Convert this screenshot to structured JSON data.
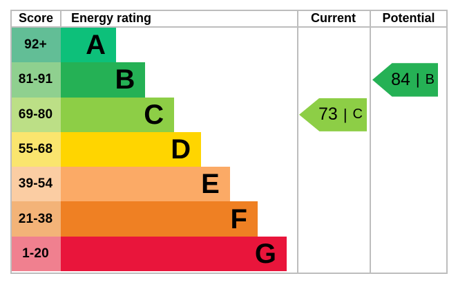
{
  "header": {
    "score": "Score",
    "energy_rating": "Energy rating",
    "current": "Current",
    "potential": "Potential"
  },
  "ui": {
    "separator": "|",
    "grid_line_color": "#bdbdbd",
    "text_color": "#000000"
  },
  "chart_data": {
    "type": "bar",
    "orientation": "horizontal",
    "title": "Energy rating",
    "xlabel": "Score",
    "xlim": [
      1,
      100
    ],
    "legend": false,
    "bands": [
      {
        "letter": "A",
        "score_range": "92+",
        "color": "#0dc07a",
        "score_bg": "#62be96",
        "width_pct": 23.4
      },
      {
        "letter": "B",
        "score_range": "81-91",
        "color": "#25b155",
        "score_bg": "#8fd08f",
        "width_pct": 35.8
      },
      {
        "letter": "C",
        "score_range": "69-80",
        "color": "#8dce46",
        "score_bg": "#bcdf86",
        "width_pct": 48.0
      },
      {
        "letter": "D",
        "score_range": "55-68",
        "color": "#ffd500",
        "score_bg": "#fae56e",
        "width_pct": 59.4
      },
      {
        "letter": "E",
        "score_range": "39-54",
        "color": "#fbaa66",
        "score_bg": "#fbcda3",
        "width_pct": 71.6
      },
      {
        "letter": "F",
        "score_range": "21-38",
        "color": "#ef8023",
        "score_bg": "#f3b378",
        "width_pct": 83.3
      },
      {
        "letter": "G",
        "score_range": "1-20",
        "color": "#e9153b",
        "score_bg": "#f0808f",
        "width_pct": 95.6
      }
    ],
    "current": {
      "score": "73",
      "band": "C"
    },
    "potential": {
      "score": "84",
      "band": "B"
    }
  }
}
